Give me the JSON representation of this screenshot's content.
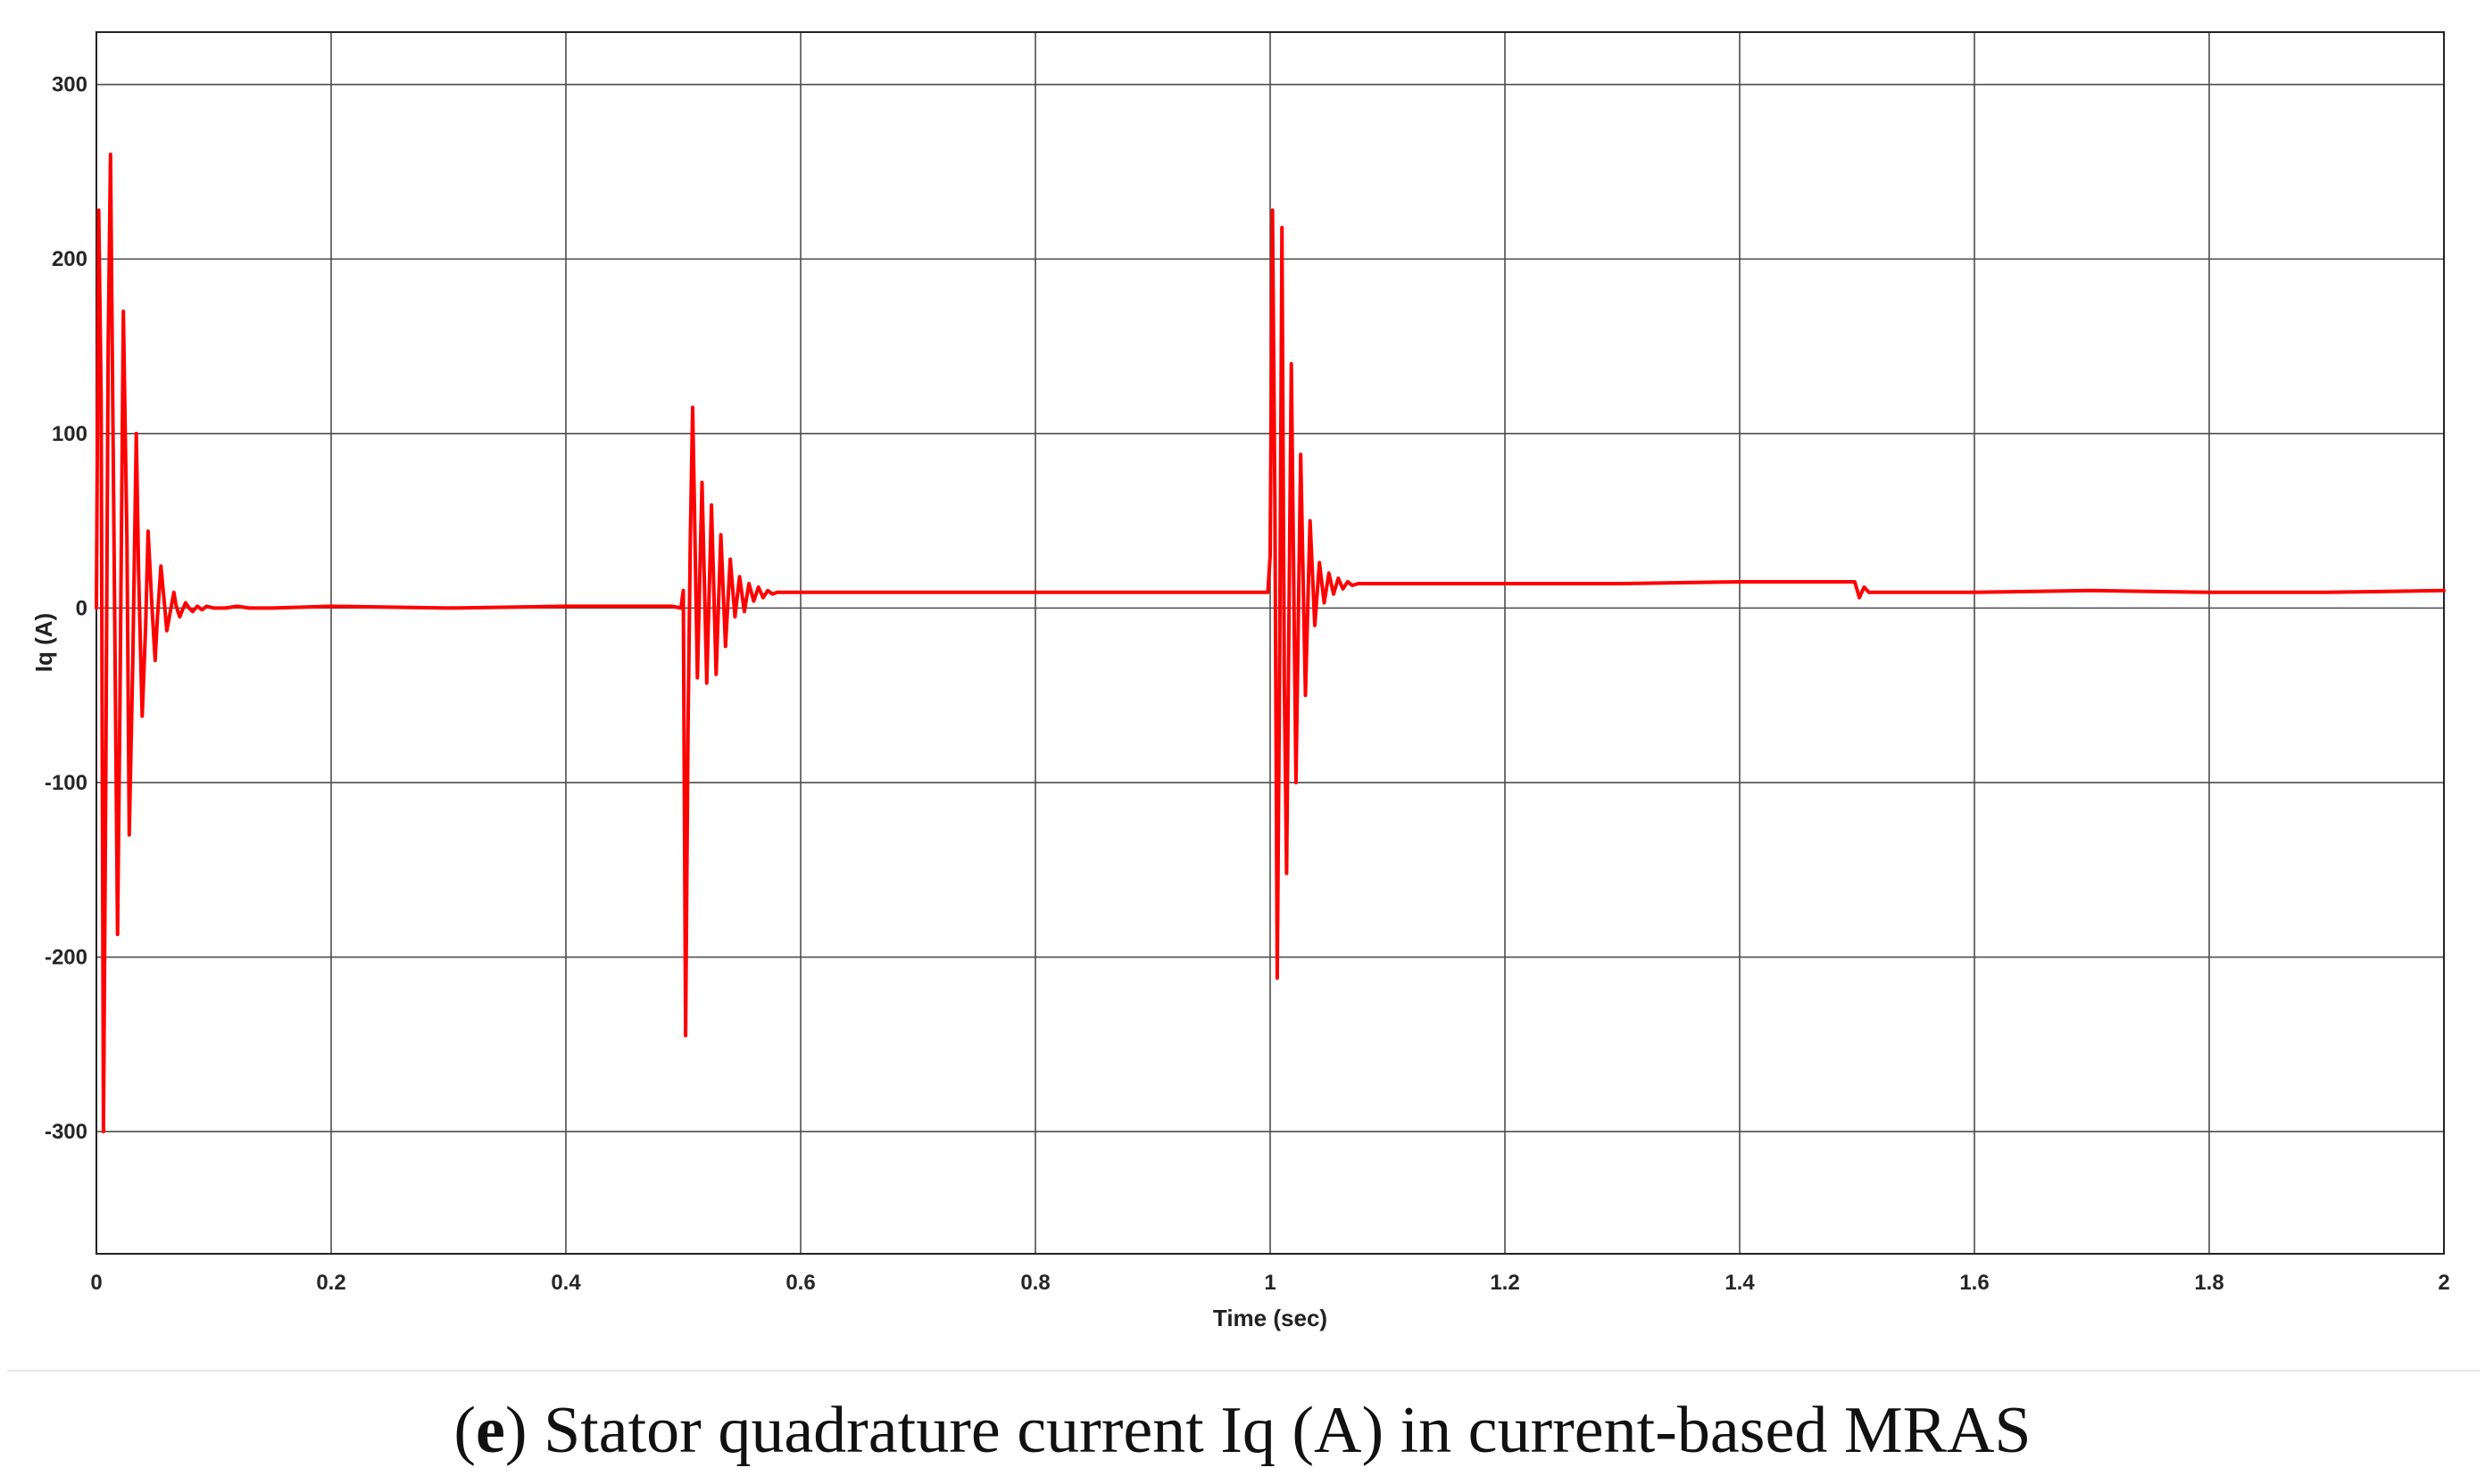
{
  "chart_data": {
    "type": "line",
    "title": "",
    "xlabel": "Time (sec)",
    "ylabel": "Iq (A)",
    "xlim": [
      0,
      2
    ],
    "ylim": [
      -370,
      330
    ],
    "x_ticks": [
      0,
      0.2,
      0.4,
      0.6,
      0.8,
      1,
      1.2,
      1.4,
      1.6,
      1.8,
      2
    ],
    "x_tick_labels": [
      "0",
      "0.2",
      "0.4",
      "0.6",
      "0.8",
      "1",
      "1.2",
      "1.4",
      "1.6",
      "1.8",
      "2"
    ],
    "y_ticks": [
      300,
      200,
      100,
      0,
      -100,
      -200,
      -300
    ],
    "y_tick_labels": [
      "300",
      "200",
      "100",
      "0",
      "-100",
      "-200",
      "-300"
    ],
    "grid": true,
    "series": [
      {
        "color": "#ff0000",
        "x": [
          0,
          0.002,
          0.004,
          0.006,
          0.008,
          0.01,
          0.012,
          0.015,
          0.018,
          0.02,
          0.023,
          0.026,
          0.028,
          0.031,
          0.034,
          0.036,
          0.039,
          0.042,
          0.044,
          0.047,
          0.05,
          0.052,
          0.055,
          0.058,
          0.06,
          0.063,
          0.066,
          0.068,
          0.071,
          0.074,
          0.076,
          0.079,
          0.082,
          0.086,
          0.09,
          0.094,
          0.1,
          0.11,
          0.12,
          0.13,
          0.15,
          0.2,
          0.3,
          0.4,
          0.49,
          0.498,
          0.5,
          0.502,
          0.504,
          0.506,
          0.508,
          0.51,
          0.512,
          0.516,
          0.52,
          0.524,
          0.528,
          0.532,
          0.536,
          0.54,
          0.544,
          0.548,
          0.552,
          0.556,
          0.56,
          0.564,
          0.568,
          0.572,
          0.576,
          0.58,
          0.585,
          0.59,
          0.6,
          0.62,
          0.7,
          0.8,
          0.9,
          0.998,
          1,
          1.002,
          1.004,
          1.006,
          1.008,
          1.01,
          1.012,
          1.014,
          1.018,
          1.022,
          1.026,
          1.03,
          1.034,
          1.038,
          1.042,
          1.046,
          1.05,
          1.054,
          1.058,
          1.062,
          1.066,
          1.07,
          1.075,
          1.08,
          1.09,
          1.1,
          1.2,
          1.3,
          1.4,
          1.498,
          1.502,
          1.506,
          1.51,
          1.52,
          1.6,
          1.7,
          1.8,
          1.9,
          2
        ],
        "y": [
          0,
          228,
          120,
          -300,
          -100,
          150,
          260,
          40,
          -187,
          -60,
          170,
          40,
          -130,
          -30,
          100,
          20,
          -62,
          -10,
          44,
          5,
          -30,
          -5,
          24,
          2,
          -13,
          -2,
          9,
          1,
          -5,
          0,
          3,
          0,
          -2,
          1,
          -1,
          1,
          0,
          0,
          1,
          0,
          0,
          1,
          0,
          1,
          1,
          0,
          10,
          -245,
          -70,
          40,
          115,
          40,
          -40,
          72,
          -43,
          59,
          -38,
          42,
          -22,
          28,
          -5,
          18,
          -2,
          14,
          4,
          12,
          6,
          10,
          8,
          9,
          9,
          9,
          9,
          9,
          9,
          9,
          9,
          9,
          30,
          228,
          60,
          -212,
          -40,
          218,
          -40,
          -152,
          140,
          -100,
          88,
          -50,
          50,
          -10,
          26,
          3,
          20,
          8,
          17,
          11,
          15,
          13,
          14,
          14,
          14,
          14,
          14,
          14,
          15,
          15,
          6,
          12,
          9,
          9,
          9,
          10,
          9,
          9,
          10
        ]
      }
    ]
  },
  "caption": {
    "open_paren": "(",
    "letter": "e",
    "close_paren": ")",
    "text": " Stator quadrature current Iq (A) in current-based MRAS"
  }
}
